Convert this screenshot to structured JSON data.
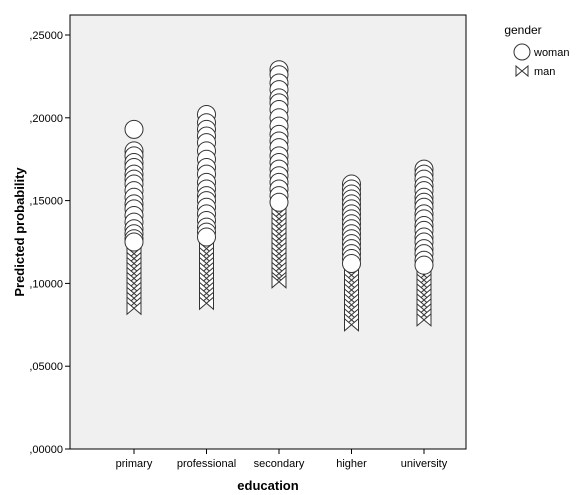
{
  "chart_data": {
    "type": "scatter",
    "xlabel": "education",
    "ylabel": "Predicted probability",
    "categories": [
      "primary",
      "professional",
      "secondary",
      "higher",
      "university"
    ],
    "ylim": [
      0,
      0.26
    ],
    "yticks": [
      0,
      0.05,
      0.1,
      0.15,
      0.2,
      0.25
    ],
    "ytick_labels": [
      ",00000",
      ",05000",
      ",10000",
      ",15000",
      ",20000",
      ",25000"
    ],
    "grid": false,
    "legend": {
      "title": "gender",
      "placement": "top-right outside",
      "entries": [
        {
          "label": "woman",
          "marker": "circle"
        },
        {
          "label": "man",
          "marker": "bowtie"
        }
      ]
    },
    "series": [
      {
        "name": "woman",
        "marker": "circle",
        "values": [
          [
            0.193,
            0.18,
            0.177,
            0.173,
            0.17,
            0.166,
            0.163,
            0.16,
            0.156,
            0.152,
            0.148,
            0.145,
            0.141,
            0.137,
            0.133,
            0.13,
            0.127,
            0.125
          ],
          [
            0.202,
            0.197,
            0.193,
            0.189,
            0.185,
            0.18,
            0.175,
            0.17,
            0.166,
            0.161,
            0.157,
            0.153,
            0.15,
            0.146,
            0.142,
            0.138,
            0.134,
            0.131,
            0.128
          ],
          [
            0.229,
            0.226,
            0.221,
            0.217,
            0.212,
            0.209,
            0.205,
            0.2,
            0.195,
            0.19,
            0.186,
            0.182,
            0.177,
            0.173,
            0.169,
            0.165,
            0.161,
            0.157,
            0.153,
            0.149
          ],
          [
            0.16,
            0.157,
            0.154,
            0.151,
            0.148,
            0.145,
            0.142,
            0.139,
            0.136,
            0.133,
            0.13,
            0.127,
            0.124,
            0.121,
            0.118,
            0.115,
            0.112
          ],
          [
            0.169,
            0.166,
            0.163,
            0.159,
            0.156,
            0.152,
            0.149,
            0.146,
            0.142,
            0.139,
            0.135,
            0.132,
            0.128,
            0.125,
            0.121,
            0.118,
            0.114,
            0.111
          ]
        ]
      },
      {
        "name": "man",
        "marker": "bowtie",
        "values": [
          [
            0.134,
            0.13,
            0.127,
            0.124,
            0.121,
            0.118,
            0.115,
            0.112,
            0.109,
            0.106,
            0.103,
            0.1,
            0.097,
            0.094,
            0.091,
            0.088,
            0.085
          ],
          [
            0.146,
            0.142,
            0.139,
            0.136,
            0.133,
            0.13,
            0.127,
            0.124,
            0.121,
            0.118,
            0.115,
            0.112,
            0.109,
            0.106,
            0.103,
            0.1,
            0.097,
            0.094,
            0.091,
            0.088
          ],
          [
            0.16,
            0.157,
            0.154,
            0.151,
            0.148,
            0.145,
            0.142,
            0.139,
            0.136,
            0.133,
            0.13,
            0.127,
            0.124,
            0.121,
            0.118,
            0.115,
            0.112,
            0.109,
            0.106,
            0.103,
            0.101
          ],
          [
            0.115,
            0.111,
            0.108,
            0.105,
            0.102,
            0.099,
            0.096,
            0.093,
            0.09,
            0.087,
            0.084,
            0.081,
            0.078,
            0.075
          ],
          [
            0.115,
            0.111,
            0.108,
            0.105,
            0.102,
            0.099,
            0.096,
            0.093,
            0.09,
            0.087,
            0.084,
            0.081,
            0.078
          ]
        ]
      }
    ]
  }
}
